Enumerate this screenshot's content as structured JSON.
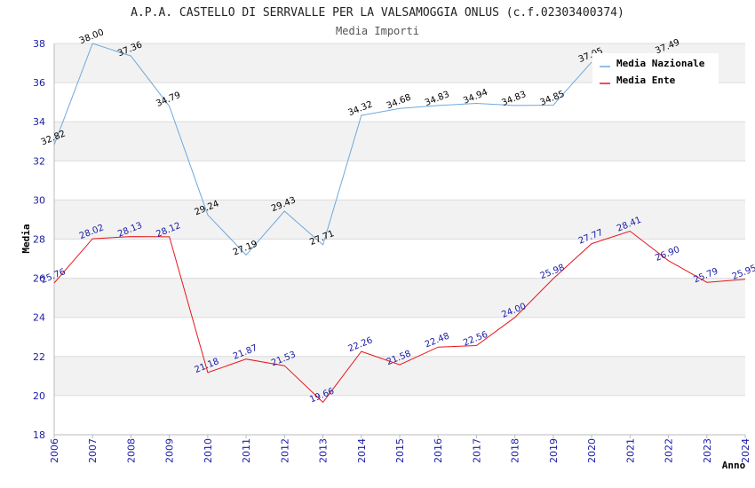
{
  "chart_data": {
    "type": "line",
    "title": "A.P.A. CASTELLO DI SERRVALLE PER LA VALSAMOGGIA ONLUS (c.f.02303400374)",
    "subtitle": "Media Importi",
    "xlabel": "Anno",
    "ylabel": "Media",
    "ylim": [
      18,
      38
    ],
    "yticks": [
      18,
      20,
      22,
      24,
      26,
      28,
      30,
      32,
      34,
      36,
      38
    ],
    "x": [
      "2006",
      "2007",
      "2008",
      "2009",
      "2010",
      "2011",
      "2012",
      "2013",
      "2014",
      "2015",
      "2016",
      "2017",
      "2018",
      "2019",
      "2020",
      "2021",
      "2022",
      "2023",
      "2024"
    ],
    "grid": true,
    "legend_position": "top-right",
    "series": [
      {
        "name": "Media Nazionale",
        "color": "#6fa8dc",
        "values": [
          32.82,
          38.0,
          37.36,
          34.79,
          29.24,
          27.19,
          29.43,
          27.71,
          34.32,
          34.68,
          34.83,
          34.94,
          34.83,
          34.85,
          37.05,
          null,
          37.49,
          null,
          null
        ],
        "labels": [
          "32.82",
          "38.00",
          "37.36",
          "34.79",
          "29.24",
          "27.19",
          "29.43",
          "27.71",
          "34.32",
          "34.68",
          "34.83",
          "34.94",
          "34.83",
          "34.85",
          "37.05",
          "",
          "37.49",
          "",
          ""
        ]
      },
      {
        "name": "Media Ente",
        "color": "#e8151b",
        "values": [
          25.76,
          28.02,
          28.13,
          28.12,
          21.18,
          21.87,
          21.53,
          19.66,
          22.26,
          21.58,
          22.48,
          22.56,
          24.0,
          25.98,
          27.77,
          28.41,
          26.9,
          25.79,
          25.95
        ],
        "labels": [
          "25.76",
          "28.02",
          "28.13",
          "28.12",
          "21.18",
          "21.87",
          "21.53",
          "19.66",
          "22.26",
          "21.58",
          "22.48",
          "22.56",
          "24.00",
          "25.98",
          "27.77",
          "28.41",
          "26.90",
          "25.79",
          "25.95"
        ]
      }
    ]
  }
}
